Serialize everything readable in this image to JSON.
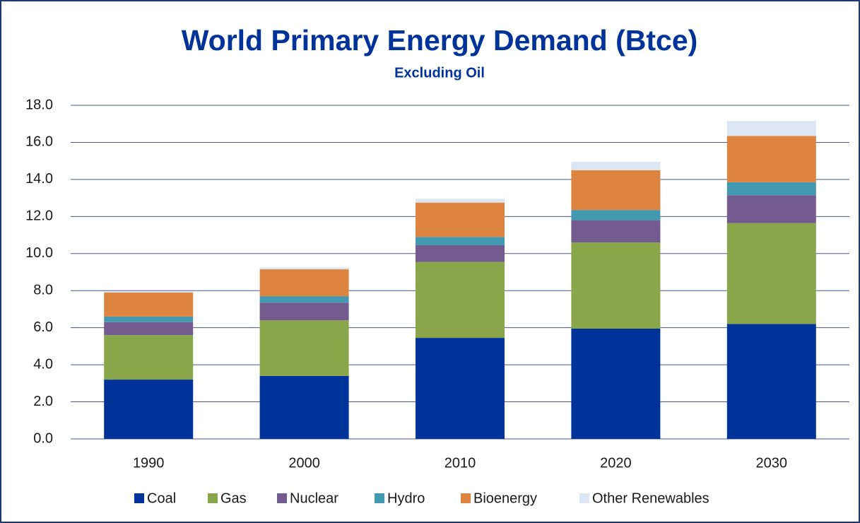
{
  "chart_data": {
    "type": "stacked-bar",
    "title": "World Primary Energy Demand (Btce)",
    "subtitle": "Excluding Oil",
    "categories": [
      "1990",
      "2000",
      "2010",
      "2020",
      "2030"
    ],
    "series": [
      {
        "name": "Coal",
        "color": "#003399",
        "values": [
          3.2,
          3.4,
          5.45,
          5.95,
          6.2
        ]
      },
      {
        "name": "Gas",
        "color": "#8aa64b",
        "values": [
          2.4,
          3.0,
          4.1,
          4.65,
          5.45
        ]
      },
      {
        "name": "Nuclear",
        "color": "#735a8f",
        "values": [
          0.7,
          0.95,
          0.9,
          1.2,
          1.5
        ]
      },
      {
        "name": "Hydro",
        "color": "#4399b0",
        "values": [
          0.3,
          0.35,
          0.45,
          0.55,
          0.7
        ]
      },
      {
        "name": "Bioenergy",
        "color": "#dd8540",
        "values": [
          1.3,
          1.45,
          1.85,
          2.15,
          2.5
        ]
      },
      {
        "name": "Other Renewables",
        "color": "#dce5f2",
        "values": [
          0.05,
          0.1,
          0.2,
          0.45,
          0.8
        ]
      }
    ],
    "ylim": [
      0,
      18
    ],
    "yticks": [
      {
        "value": 0,
        "label": "0.0"
      },
      {
        "value": 2,
        "label": "2.0"
      },
      {
        "value": 4,
        "label": "4.0"
      },
      {
        "value": 6,
        "label": "6.0"
      },
      {
        "value": 8,
        "label": "8.0"
      },
      {
        "value": 10,
        "label": "10.0"
      },
      {
        "value": 12,
        "label": "12.0"
      },
      {
        "value": 14,
        "label": "14.0"
      },
      {
        "value": 16,
        "label": "16.0"
      },
      {
        "value": 18,
        "label": "18.0"
      }
    ],
    "grid": true,
    "legend": "bottom"
  }
}
